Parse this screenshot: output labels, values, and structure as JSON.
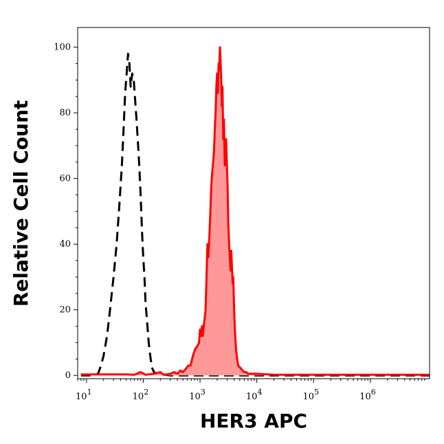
{
  "chart_data": {
    "type": "area",
    "title": "",
    "xlabel": "HER3 APC",
    "ylabel": "Relative Cell Count",
    "x_scale": "log",
    "xlim": [
      7,
      11000000
    ],
    "ylim": [
      -1,
      106
    ],
    "y_ticks": [
      0,
      20,
      40,
      60,
      80,
      100
    ],
    "x_ticks": [
      {
        "value": 10,
        "base": "10",
        "exp": "1"
      },
      {
        "value": 100,
        "base": "10",
        "exp": "2"
      },
      {
        "value": 1000,
        "base": "10",
        "exp": "3"
      },
      {
        "value": 10000,
        "base": "10",
        "exp": "4"
      },
      {
        "value": 100000,
        "base": "10",
        "exp": "5"
      },
      {
        "value": 1000000,
        "base": "10",
        "exp": "6"
      }
    ],
    "grid": false,
    "series": [
      {
        "style": "dashed",
        "color": "#000000",
        "fill": "none",
        "points": [
          [
            8,
            0
          ],
          [
            12,
            0
          ],
          [
            16,
            0.5
          ],
          [
            18,
            3
          ],
          [
            20,
            6
          ],
          [
            23,
            12
          ],
          [
            26,
            20
          ],
          [
            30,
            30
          ],
          [
            34,
            40
          ],
          [
            38,
            52
          ],
          [
            42,
            64
          ],
          [
            45,
            75
          ],
          [
            48,
            86
          ],
          [
            51,
            92
          ],
          [
            54,
            98
          ],
          [
            57,
            95
          ],
          [
            60,
            88
          ],
          [
            64,
            92
          ],
          [
            68,
            90
          ],
          [
            72,
            84
          ],
          [
            76,
            78
          ],
          [
            80,
            72
          ],
          [
            85,
            64
          ],
          [
            90,
            55
          ],
          [
            95,
            44
          ],
          [
            100,
            36
          ],
          [
            105,
            30
          ],
          [
            110,
            22
          ],
          [
            115,
            18
          ],
          [
            125,
            10
          ],
          [
            135,
            5
          ],
          [
            145,
            2
          ],
          [
            155,
            1
          ],
          [
            170,
            0.5
          ],
          [
            220,
            0.3
          ],
          [
            300,
            0
          ],
          [
            1000,
            0
          ],
          [
            11000000,
            0
          ]
        ]
      },
      {
        "style": "solid",
        "color": "#ff0000",
        "fill": "#ff9999",
        "points": [
          [
            8,
            0.3
          ],
          [
            50,
            0.3
          ],
          [
            70,
            0.2
          ],
          [
            90,
            1
          ],
          [
            110,
            0.2
          ],
          [
            150,
            0.5
          ],
          [
            200,
            1
          ],
          [
            230,
            0.2
          ],
          [
            300,
            0.5
          ],
          [
            350,
            1
          ],
          [
            400,
            0.5
          ],
          [
            450,
            1.5
          ],
          [
            500,
            1
          ],
          [
            560,
            2
          ],
          [
            620,
            3
          ],
          [
            680,
            3
          ],
          [
            750,
            6
          ],
          [
            820,
            8
          ],
          [
            900,
            9
          ],
          [
            960,
            10
          ],
          [
            1000,
            14
          ],
          [
            1040,
            12
          ],
          [
            1080,
            15
          ],
          [
            1120,
            12
          ],
          [
            1160,
            15
          ],
          [
            1200,
            17
          ],
          [
            1250,
            20
          ],
          [
            1300,
            30
          ],
          [
            1350,
            40
          ],
          [
            1400,
            36
          ],
          [
            1460,
            42
          ],
          [
            1520,
            50
          ],
          [
            1580,
            58
          ],
          [
            1640,
            62
          ],
          [
            1700,
            65
          ],
          [
            1760,
            68
          ],
          [
            1820,
            75
          ],
          [
            1880,
            80
          ],
          [
            1940,
            88
          ],
          [
            2000,
            92
          ],
          [
            2060,
            86
          ],
          [
            2120,
            95
          ],
          [
            2180,
            93
          ],
          [
            2240,
            100
          ],
          [
            2300,
            96
          ],
          [
            2360,
            90
          ],
          [
            2420,
            82
          ],
          [
            2480,
            88
          ],
          [
            2560,
            72
          ],
          [
            2640,
            78
          ],
          [
            2720,
            64
          ],
          [
            2800,
            68
          ],
          [
            2880,
            72
          ],
          [
            2960,
            65
          ],
          [
            3050,
            58
          ],
          [
            3150,
            46
          ],
          [
            3250,
            40
          ],
          [
            3350,
            36
          ],
          [
            3450,
            32
          ],
          [
            3550,
            38
          ],
          [
            3650,
            33
          ],
          [
            3750,
            28
          ],
          [
            3850,
            30
          ],
          [
            3950,
            22
          ],
          [
            4100,
            14
          ],
          [
            4300,
            8
          ],
          [
            4500,
            5
          ],
          [
            4700,
            3
          ],
          [
            5000,
            2.5
          ],
          [
            5300,
            2
          ],
          [
            5600,
            1.5
          ],
          [
            6000,
            1
          ],
          [
            6500,
            1
          ],
          [
            7000,
            0.5
          ],
          [
            10000,
            0.5
          ],
          [
            20000,
            0.2
          ],
          [
            100000,
            0.2
          ],
          [
            1000000,
            0.2
          ],
          [
            11000000,
            0.2
          ]
        ]
      }
    ]
  }
}
